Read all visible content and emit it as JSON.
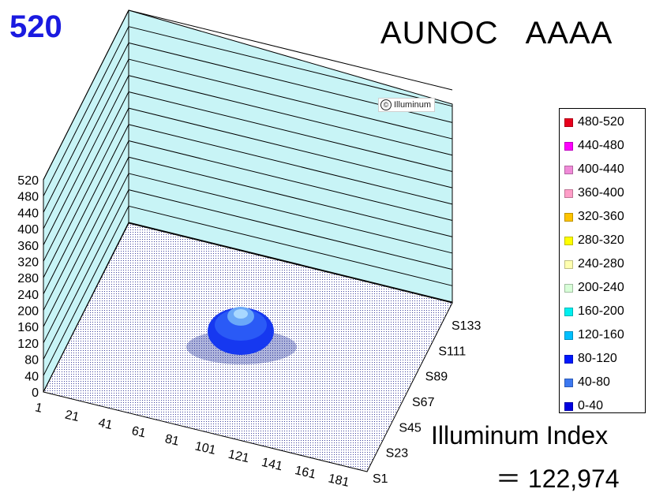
{
  "header": {
    "max_value_label": "520",
    "title": "AUNOC   AAAA"
  },
  "watermark": {
    "icon_glyph": "©",
    "text": "Illuminum"
  },
  "index": {
    "label": "Illuminum Index",
    "value_text": "＝ 122,974"
  },
  "chart_data": {
    "type": "surface3d",
    "title": "AUNOC   AAAA",
    "zlim": [
      0,
      520
    ],
    "z_ticks": [
      "520",
      "480",
      "440",
      "400",
      "360",
      "320",
      "280",
      "240",
      "200",
      "160",
      "120",
      "80",
      "40",
      "0"
    ],
    "x_ticks": [
      "1",
      "21",
      "41",
      "61",
      "81",
      "101",
      "121",
      "141",
      "161",
      "181"
    ],
    "y_ticks": [
      "S1",
      "S23",
      "S45",
      "S67",
      "S89",
      "S111",
      "S133"
    ],
    "grid": true,
    "legend_placement": "right",
    "legend": [
      {
        "label": "480-520",
        "color": "#e8001c"
      },
      {
        "label": "440-480",
        "color": "#ff00ff"
      },
      {
        "label": "400-440",
        "color": "#f08ad8"
      },
      {
        "label": "360-400",
        "color": "#ff9ec8"
      },
      {
        "label": "320-360",
        "color": "#ffc400"
      },
      {
        "label": "280-320",
        "color": "#ffff00"
      },
      {
        "label": "240-280",
        "color": "#ffffb0"
      },
      {
        "label": "200-240",
        "color": "#d8ffd8"
      },
      {
        "label": "160-200",
        "color": "#00f0f0"
      },
      {
        "label": "120-160",
        "color": "#00c0ff"
      },
      {
        "label": "80-120",
        "color": "#0018ff"
      },
      {
        "label": "40-80",
        "color": "#3c78f0"
      },
      {
        "label": "0-40",
        "color": "#0000e0"
      }
    ],
    "peak": {
      "x": 101,
      "y": "S89",
      "band": "120-160"
    }
  }
}
